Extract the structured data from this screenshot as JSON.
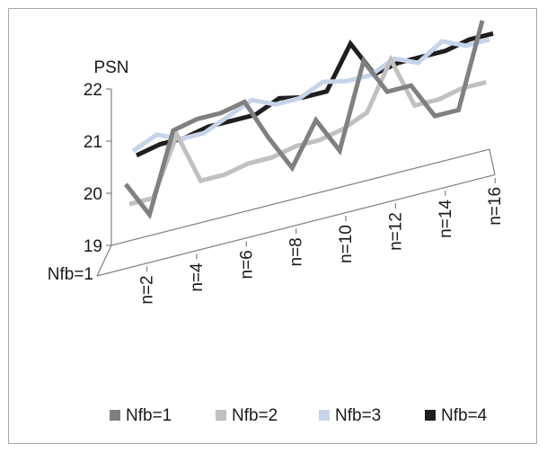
{
  "chart_data": {
    "type": "line",
    "subtype": "3d-line",
    "title": "",
    "ylabel": "PSN",
    "ylim": [
      19,
      22
    ],
    "y_ticks": [
      "19",
      "20",
      "21",
      "22"
    ],
    "depth_label": "Nfb=1",
    "x_tick_labels": [
      "n=2",
      "n=4",
      "n=6",
      "n=8",
      "n=10",
      "n=12",
      "n=14",
      "n=16"
    ],
    "x": [
      1,
      2,
      3,
      4,
      5,
      6,
      7,
      8,
      9,
      10,
      11,
      12,
      13,
      14,
      15,
      16
    ],
    "grid": false,
    "legend_position": "bottom",
    "series": [
      {
        "name": "Nfb=1",
        "color": "#808080",
        "values": [
          20.2,
          19.5,
          21.0,
          21.1,
          21.1,
          21.2,
          20.4,
          19.7,
          20.5,
          19.8,
          21.4,
          20.7,
          20.7,
          20.0,
          20.0,
          21.6
        ]
      },
      {
        "name": "Nfb=2",
        "color": "#c0c0c0",
        "values": [
          19.8,
          19.8,
          20.9,
          19.9,
          19.9,
          20.0,
          20.0,
          20.1,
          20.1,
          20.2,
          20.4,
          21.3,
          20.3,
          20.3,
          20.4,
          20.4
        ]
      },
      {
        "name": "Nfb=3",
        "color": "#c6d4ea",
        "values": [
          20.8,
          21.0,
          20.8,
          20.8,
          21.0,
          21.2,
          21.0,
          21.0,
          21.2,
          21.1,
          21.1,
          21.3,
          21.1,
          21.4,
          21.2,
          21.2
        ]
      },
      {
        "name": "Nfb=4",
        "color": "#1e1e1e",
        "values": [
          20.7,
          20.8,
          20.8,
          20.9,
          20.9,
          20.9,
          21.1,
          21.0,
          21.0,
          21.8,
          21.1,
          21.2,
          21.2,
          21.2,
          21.3,
          21.3
        ]
      }
    ]
  }
}
